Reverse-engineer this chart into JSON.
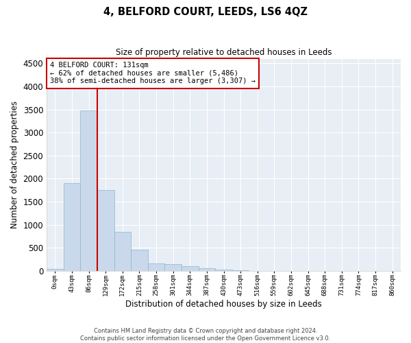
{
  "title": "4, BELFORD COURT, LEEDS, LS6 4QZ",
  "subtitle": "Size of property relative to detached houses in Leeds",
  "xlabel": "Distribution of detached houses by size in Leeds",
  "ylabel": "Number of detached properties",
  "bar_color": "#c9d9eb",
  "bar_edge_color": "#8ab4d4",
  "bg_color": "#e8eef5",
  "grid_color": "#ffffff",
  "annotation_box_color": "#cc0000",
  "vline_color": "#cc0000",
  "annotation_text": "4 BELFORD COURT: 131sqm\n← 62% of detached houses are smaller (5,486)\n38% of semi-detached houses are larger (3,307) →",
  "tick_labels": [
    "0sqm",
    "43sqm",
    "86sqm",
    "129sqm",
    "172sqm",
    "215sqm",
    "258sqm",
    "301sqm",
    "344sqm",
    "387sqm",
    "430sqm",
    "473sqm",
    "516sqm",
    "559sqm",
    "602sqm",
    "645sqm",
    "688sqm",
    "731sqm",
    "774sqm",
    "817sqm",
    "860sqm"
  ],
  "bar_values": [
    40,
    1900,
    3480,
    1760,
    850,
    460,
    165,
    155,
    100,
    55,
    35,
    10,
    5,
    3,
    2,
    1,
    1,
    0,
    0,
    0,
    0
  ],
  "ylim": [
    0,
    4600
  ],
  "yticks": [
    0,
    500,
    1000,
    1500,
    2000,
    2500,
    3000,
    3500,
    4000,
    4500
  ],
  "vline_x_index": 3,
  "footer_line1": "Contains HM Land Registry data © Crown copyright and database right 2024.",
  "footer_line2": "Contains public sector information licensed under the Open Government Licence v3.0."
}
